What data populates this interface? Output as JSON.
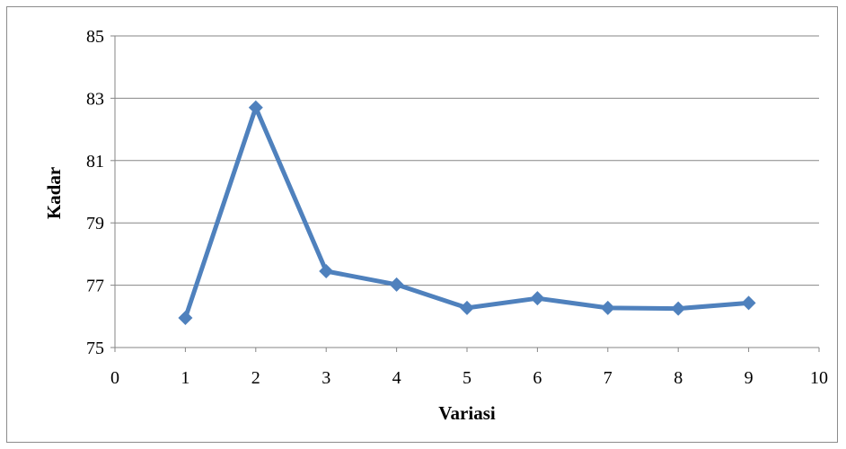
{
  "chart_data": {
    "type": "line",
    "xlabel": "Variasi",
    "ylabel": "Kadar",
    "xlim": [
      0,
      10
    ],
    "ylim": [
      75,
      85
    ],
    "xticks": [
      0,
      1,
      2,
      3,
      4,
      5,
      6,
      7,
      8,
      9,
      10
    ],
    "yticks": [
      75,
      77,
      79,
      81,
      83,
      85
    ],
    "grid": "horizontal",
    "legend": "none",
    "series": [
      {
        "x": [
          1,
          2,
          3,
          4,
          5,
          6,
          7,
          8,
          9
        ],
        "y": [
          75.95,
          82.7,
          77.45,
          77.02,
          76.27,
          76.58,
          76.27,
          76.25,
          76.43
        ],
        "color": "#4f81bd",
        "marker": "diamond"
      }
    ]
  },
  "colors": {
    "series": "#4f81bd",
    "grid": "#868686",
    "axis": "#868686",
    "frame": "#8c8c8c"
  }
}
